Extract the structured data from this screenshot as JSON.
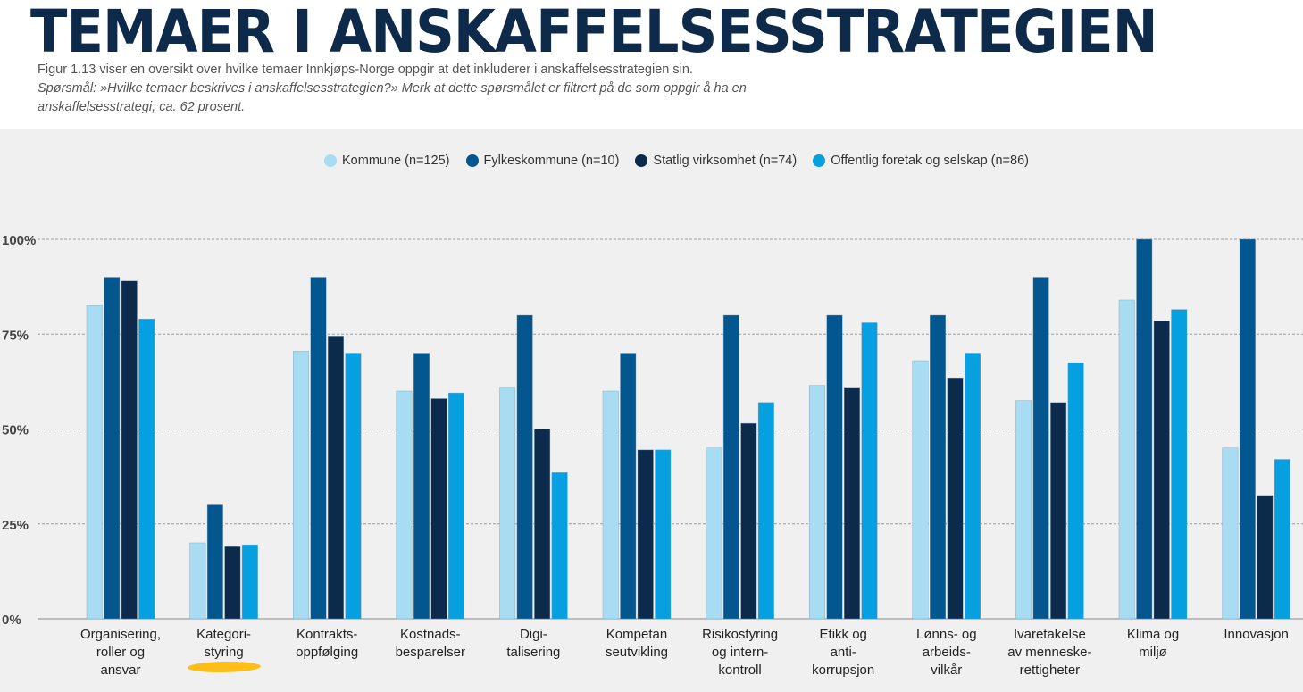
{
  "header": {
    "title": "TEMAER I ANSKAFFELSESSTRATEGIEN",
    "caption": "Figur 1.13 viser en oversikt over hvilke temaer Innkjøps-Norge oppgir at det inkluderer i anskaffelsesstrategien sin.",
    "question": "Spørsmål: »Hvilke temaer beskrives i anskaffelsesstrategien?» Merk at dette spørsmålet er filtrert på de som oppgir å ha en anskaffelsesstrategi, ca. 62 prosent."
  },
  "chart_data": {
    "type": "bar",
    "title": "",
    "xlabel": "",
    "ylabel": "",
    "ylim": [
      0,
      100
    ],
    "yticks": [
      0,
      25,
      50,
      75,
      100
    ],
    "ytick_labels": [
      "0%",
      "25%",
      "50%",
      "75%",
      "100%"
    ],
    "grid": true,
    "legend_position": "top-center",
    "categories": [
      [
        "Organisering,",
        "roller og",
        "ansvar"
      ],
      [
        "Kategori-",
        "styring"
      ],
      [
        "Kontrakts-",
        "oppfølging"
      ],
      [
        "Kostnads-",
        "besparelser"
      ],
      [
        "Digi-",
        "talisering"
      ],
      [
        "Kompetan",
        "seutvikling"
      ],
      [
        "Risikostyring",
        "og intern-",
        "kontroll"
      ],
      [
        "Etikk og",
        "anti-",
        "korrupsjon"
      ],
      [
        "Lønns- og",
        "arbeids-",
        "vilkår"
      ],
      [
        "Ivaretakelse",
        "av menneske-",
        "rettigheter"
      ],
      [
        "Klima og",
        "miljø"
      ],
      [
        "Innovasjon"
      ]
    ],
    "series": [
      {
        "name": "Kommune (n=125)",
        "color": "#a8dcf2",
        "values": [
          82.5,
          20,
          70.5,
          60,
          61,
          60,
          45,
          61.5,
          68,
          57.5,
          84,
          45
        ]
      },
      {
        "name": "Fylkeskommune (n=10)",
        "color": "#04568f",
        "values": [
          90,
          30,
          90,
          70,
          80,
          70,
          80,
          80,
          80,
          90,
          100,
          100
        ]
      },
      {
        "name": "Statlig virksomhet (n=74)",
        "color": "#0c2a4b",
        "values": [
          89,
          19,
          74.5,
          58,
          50,
          44.5,
          51.5,
          61,
          63.5,
          57,
          78.5,
          32.5
        ]
      },
      {
        "name": "Offentlig foretak og selskap (n=86)",
        "color": "#069fe0",
        "values": [
          79,
          19.5,
          70,
          59.5,
          38.5,
          44.5,
          57,
          78,
          70,
          67.5,
          81.5,
          42
        ]
      }
    ]
  }
}
